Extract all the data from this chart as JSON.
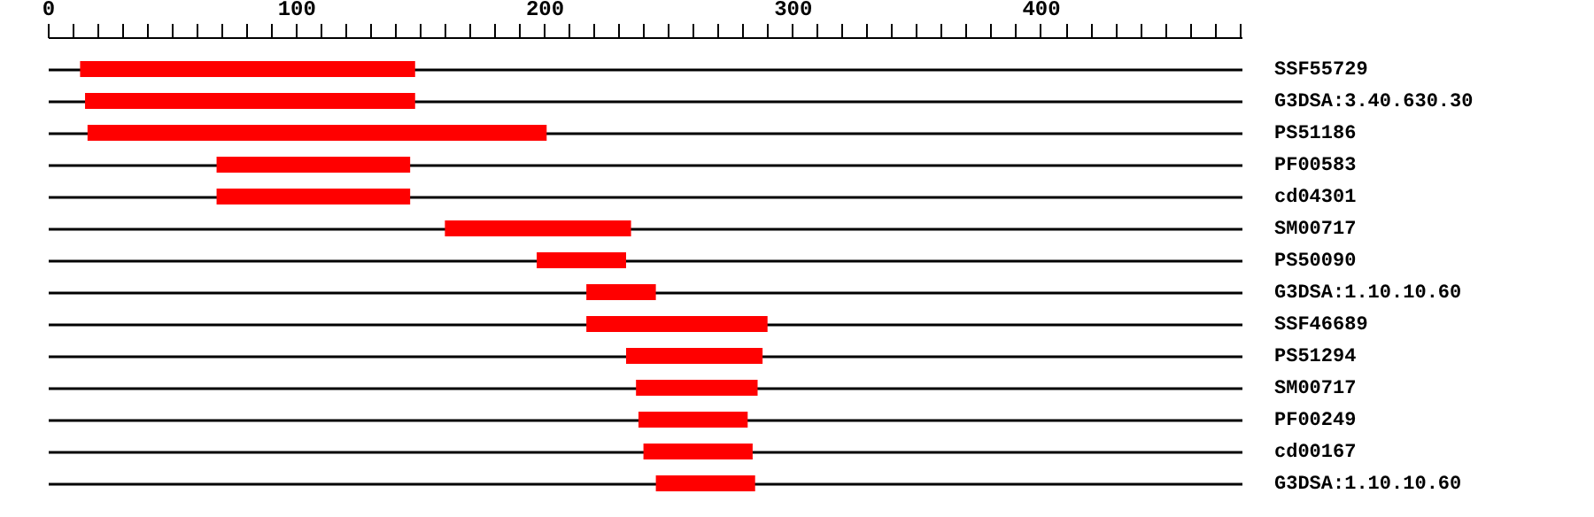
{
  "chart_data": {
    "type": "bar",
    "orientation": "horizontal",
    "categories": [
      "SSF55729",
      "G3DSA:3.40.630.30",
      "PS51186",
      "PF00583",
      "cd04301",
      "SM00717",
      "PS50090",
      "G3DSA:1.10.10.60",
      "SSF46689",
      "PS51294",
      "SM00717",
      "PF00249",
      "cd00167",
      "G3DSA:1.10.10.60"
    ],
    "base": [
      13,
      15,
      16,
      68,
      68,
      160,
      197,
      217,
      217,
      233,
      237,
      238,
      240,
      245
    ],
    "values": [
      135,
      133,
      185,
      78,
      78,
      75,
      36,
      28,
      73,
      55,
      49,
      44,
      44,
      40
    ],
    "color": "#ff0000",
    "xlim": [
      0,
      481
    ],
    "xticks": [
      0,
      {
        "value": 10,
        "label": null
      },
      {
        "value": 20,
        "label": null
      },
      {
        "value": 30,
        "label": null
      },
      {
        "value": 40,
        "label": null
      },
      {
        "value": 50,
        "label": null
      },
      {
        "value": 60,
        "label": null
      },
      {
        "value": 70,
        "label": null
      },
      {
        "value": 80,
        "label": null
      },
      {
        "value": 90,
        "label": null
      },
      100,
      {
        "value": 110,
        "label": null
      },
      {
        "value": 120,
        "label": null
      },
      {
        "value": 130,
        "label": null
      },
      {
        "value": 140,
        "label": null
      },
      {
        "value": 150,
        "label": null
      },
      {
        "value": 160,
        "label": null
      },
      {
        "value": 170,
        "label": null
      },
      {
        "value": 180,
        "label": null
      },
      {
        "value": 190,
        "label": null
      },
      200,
      {
        "value": 210,
        "label": null
      },
      {
        "value": 220,
        "label": null
      },
      {
        "value": 230,
        "label": null
      },
      {
        "value": 240,
        "label": null
      },
      {
        "value": 250,
        "label": null
      },
      {
        "value": 260,
        "label": null
      },
      {
        "value": 270,
        "label": null
      },
      {
        "value": 280,
        "label": null
      },
      {
        "value": 290,
        "label": null
      },
      300,
      {
        "value": 310,
        "label": null
      },
      {
        "value": 320,
        "label": null
      },
      {
        "value": 330,
        "label": null
      },
      {
        "value": 340,
        "label": null
      },
      {
        "value": 350,
        "label": null
      },
      {
        "value": 360,
        "label": null
      },
      {
        "value": 370,
        "label": null
      },
      {
        "value": 380,
        "label": null
      },
      {
        "value": 390,
        "label": null
      },
      400,
      {
        "value": 410,
        "label": null
      },
      {
        "value": 420,
        "label": null
      },
      {
        "value": 430,
        "label": null
      },
      {
        "value": 440,
        "label": null
      },
      {
        "value": 450,
        "label": null
      },
      {
        "value": 460,
        "label": null
      },
      {
        "value": 470,
        "label": null
      },
      {
        "value": 480,
        "label": null
      }
    ],
    "grid": "y"
  }
}
